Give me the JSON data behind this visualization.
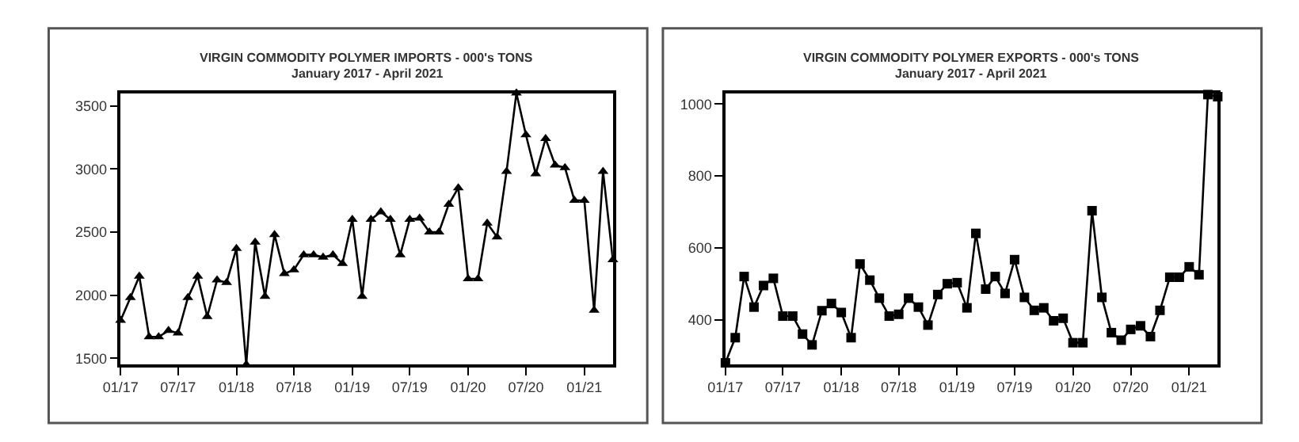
{
  "chart_data": [
    {
      "type": "line",
      "title": "VIRGIN COMMODITY POLYMER IMPORTS - 000's TONS",
      "subtitle": "January 2017 - April 2021",
      "marker": "triangle",
      "x": [
        "2017-01",
        "2017-02",
        "2017-03",
        "2017-04",
        "2017-05",
        "2017-06",
        "2017-07",
        "2017-08",
        "2017-09",
        "2017-10",
        "2017-11",
        "2017-12",
        "2018-01",
        "2018-02",
        "2018-03",
        "2018-04",
        "2018-05",
        "2018-06",
        "2018-07",
        "2018-08",
        "2018-09",
        "2018-10",
        "2018-11",
        "2018-12",
        "2019-01",
        "2019-02",
        "2019-03",
        "2019-04",
        "2019-05",
        "2019-06",
        "2019-07",
        "2019-08",
        "2019-09",
        "2019-10",
        "2019-11",
        "2019-12",
        "2020-01",
        "2020-02",
        "2020-03",
        "2020-04",
        "2020-05",
        "2020-06",
        "2020-07",
        "2020-08",
        "2020-09",
        "2020-10",
        "2020-11",
        "2020-12",
        "2021-01",
        "2021-02",
        "2021-03",
        "2021-04"
      ],
      "series": [
        {
          "color": "#000000",
          "values": [
            1800,
            1980,
            2150,
            1670,
            1670,
            1720,
            1700,
            1980,
            2150,
            1830,
            2120,
            2100,
            2370,
            1450,
            2420,
            1990,
            2480,
            2170,
            2200,
            2320,
            2320,
            2300,
            2320,
            2250,
            2600,
            1990,
            2600,
            2660,
            2600,
            2320,
            2600,
            2610,
            2500,
            2500,
            2720,
            2850,
            2130,
            2130,
            2570,
            2460,
            2980,
            3600,
            3270,
            2960,
            3240,
            3030,
            3010,
            2750,
            2750,
            1880,
            2980,
            2280
          ]
        }
      ],
      "xlim": [
        "2017-01",
        "2021-04"
      ],
      "xticks": [
        {
          "value": "2017-01",
          "label": "01/17"
        },
        {
          "value": "2017-07",
          "label": "07/17"
        },
        {
          "value": "2018-01",
          "label": "01/18"
        },
        {
          "value": "2018-07",
          "label": "07/18"
        },
        {
          "value": "2019-01",
          "label": "01/19"
        },
        {
          "value": "2019-07",
          "label": "07/19"
        },
        {
          "value": "2020-01",
          "label": "01/20"
        },
        {
          "value": "2020-07",
          "label": "07/20"
        },
        {
          "value": "2021-01",
          "label": "01/21"
        }
      ],
      "ylim": [
        1450,
        3600
      ],
      "yticks": [
        1500,
        2000,
        2500,
        3000,
        3500
      ]
    },
    {
      "type": "line",
      "title": "VIRGIN COMMODITY POLYMER EXPORTS - 000's TONS",
      "subtitle": "January 2017 - April 2021",
      "marker": "square",
      "x": [
        "2017-01",
        "2017-02",
        "2017-03",
        "2017-04",
        "2017-05",
        "2017-06",
        "2017-07",
        "2017-08",
        "2017-09",
        "2017-10",
        "2017-11",
        "2017-12",
        "2018-01",
        "2018-02",
        "2018-03",
        "2018-04",
        "2018-05",
        "2018-06",
        "2018-07",
        "2018-08",
        "2018-09",
        "2018-10",
        "2018-11",
        "2018-12",
        "2019-01",
        "2019-02",
        "2019-03",
        "2019-04",
        "2019-05",
        "2019-06",
        "2019-07",
        "2019-08",
        "2019-09",
        "2019-10",
        "2019-11",
        "2019-12",
        "2020-01",
        "2020-02",
        "2020-03",
        "2020-04",
        "2020-05",
        "2020-06",
        "2020-07",
        "2020-08",
        "2020-09",
        "2020-10",
        "2020-11",
        "2020-12",
        "2021-01",
        "2021-02",
        "2021-03",
        "2021-04"
      ],
      "series": [
        {
          "color": "#000000",
          "values": [
            280,
            350,
            520,
            435,
            495,
            515,
            410,
            410,
            360,
            330,
            425,
            445,
            420,
            350,
            555,
            510,
            460,
            410,
            415,
            460,
            435,
            385,
            470,
            500,
            503,
            433,
            640,
            485,
            520,
            473,
            567,
            462,
            426,
            433,
            397,
            404,
            336,
            336,
            703,
            462,
            364,
            343,
            373,
            383,
            353,
            426,
            518,
            518,
            547,
            525,
            1026,
            1020
          ]
        }
      ],
      "xlim": [
        "2017-01",
        "2021-04"
      ],
      "xticks": [
        {
          "value": "2017-01",
          "label": "01/17"
        },
        {
          "value": "2017-07",
          "label": "07/17"
        },
        {
          "value": "2018-01",
          "label": "01/18"
        },
        {
          "value": "2018-07",
          "label": "07/18"
        },
        {
          "value": "2019-01",
          "label": "01/19"
        },
        {
          "value": "2019-07",
          "label": "07/19"
        },
        {
          "value": "2020-01",
          "label": "01/20"
        },
        {
          "value": "2020-07",
          "label": "07/20"
        },
        {
          "value": "2021-01",
          "label": "01/21"
        }
      ],
      "ylim": [
        275,
        1030
      ],
      "yticks": [
        400,
        600,
        800,
        1000
      ]
    }
  ]
}
